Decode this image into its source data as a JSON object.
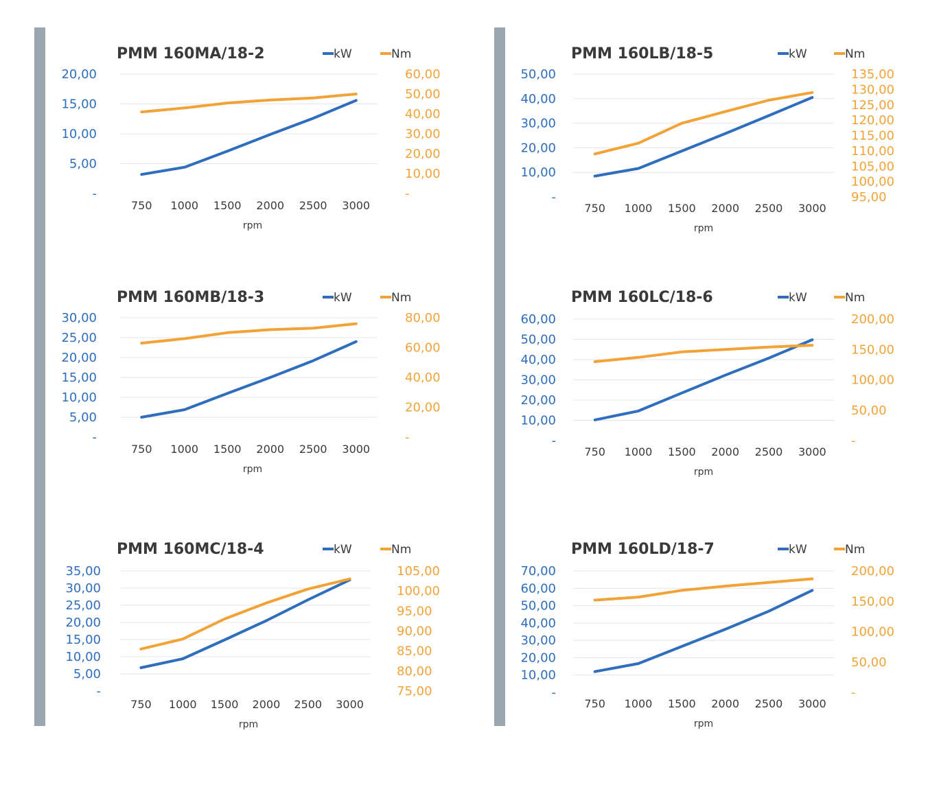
{
  "colors": {
    "kw": "#2e6ebd",
    "nm": "#f2a338",
    "sidebar": "#9aa7b1"
  },
  "chart_data": [
    {
      "type": "line",
      "title": "PMM 160MA/18-2",
      "categories": [
        "750",
        "1000",
        "1500",
        "2000",
        "2500",
        "3000"
      ],
      "xlabel": "rpm",
      "series": [
        {
          "name": "kW",
          "axis": "left",
          "values": [
            3.2,
            4.4,
            7.1,
            9.9,
            12.6,
            15.6
          ]
        },
        {
          "name": "Nm",
          "axis": "right",
          "values": [
            41,
            43,
            45.5,
            47,
            48,
            50
          ]
        }
      ],
      "left_axis": {
        "range": [
          0,
          20
        ],
        "ticks": [
          "-",
          "5,00",
          "10,00",
          "15,00",
          "20,00"
        ]
      },
      "right_axis": {
        "range": [
          0,
          60
        ],
        "ticks": [
          "-",
          "10,00",
          "20,00",
          "30,00",
          "40,00",
          "50,00",
          "60,00"
        ]
      }
    },
    {
      "type": "line",
      "title": "PMM 160MB/18-3",
      "categories": [
        "750",
        "1000",
        "1500",
        "2000",
        "2500",
        "3000"
      ],
      "xlabel": "rpm",
      "series": [
        {
          "name": "kW",
          "axis": "left",
          "values": [
            5,
            6.9,
            11,
            15,
            19.2,
            24
          ]
        },
        {
          "name": "Nm",
          "axis": "right",
          "values": [
            63,
            66,
            70,
            72,
            73,
            76
          ]
        }
      ],
      "left_axis": {
        "range": [
          0,
          30
        ],
        "ticks": [
          "-",
          "5,00",
          "10,00",
          "15,00",
          "20,00",
          "25,00",
          "30,00"
        ]
      },
      "right_axis": {
        "range": [
          0,
          80
        ],
        "ticks": [
          "-",
          "20,00",
          "40,00",
          "60,00",
          "80,00"
        ]
      }
    },
    {
      "type": "line",
      "title": "PMM 160MC/18-4",
      "categories": [
        "750",
        "1000",
        "1500",
        "2000",
        "2500",
        "3000"
      ],
      "xlabel": "rpm",
      "series": [
        {
          "name": "kW",
          "axis": "left",
          "values": [
            6.8,
            9.4,
            14.9,
            20.5,
            26.6,
            32.4
          ]
        },
        {
          "name": "Nm",
          "axis": "right",
          "values": [
            85.5,
            88,
            93,
            97,
            100.5,
            103
          ]
        }
      ],
      "left_axis": {
        "range": [
          0,
          35
        ],
        "ticks": [
          "-",
          "5,00",
          "10,00",
          "15,00",
          "20,00",
          "25,00",
          "30,00",
          "35,00"
        ]
      },
      "right_axis": {
        "range": [
          75,
          105
        ],
        "ticks": [
          "75,00",
          "80,00",
          "85,00",
          "90,00",
          "95,00",
          "100,00",
          "105,00"
        ]
      }
    },
    {
      "type": "line",
      "title": "PMM 160LB/18-5",
      "categories": [
        "750",
        "1000",
        "1500",
        "2000",
        "2500",
        "3000"
      ],
      "xlabel": "rpm",
      "series": [
        {
          "name": "kW",
          "axis": "left",
          "values": [
            8.5,
            11.6,
            18.7,
            25.8,
            33.1,
            40.5
          ]
        },
        {
          "name": "Nm",
          "axis": "right",
          "values": [
            109,
            112.5,
            119,
            122.8,
            126.5,
            129
          ]
        }
      ],
      "left_axis": {
        "range": [
          0,
          50
        ],
        "ticks": [
          "-",
          "10,00",
          "20,00",
          "30,00",
          "40,00",
          "50,00"
        ]
      },
      "right_axis": {
        "range": [
          95,
          135
        ],
        "ticks": [
          "95,00",
          "100,00",
          "105,00",
          "110,00",
          "115,00",
          "120,00",
          "125,00",
          "130,00",
          "135,00"
        ]
      }
    },
    {
      "type": "line",
      "title": "PMM 160LC/18-6",
      "categories": [
        "750",
        "1000",
        "1500",
        "2000",
        "2500",
        "3000"
      ],
      "xlabel": "rpm",
      "series": [
        {
          "name": "kW",
          "axis": "left",
          "values": [
            10.2,
            14.6,
            23.5,
            32.3,
            40.7,
            49.8
          ]
        },
        {
          "name": "Nm",
          "axis": "right",
          "values": [
            130,
            137,
            146,
            150,
            154,
            157
          ]
        }
      ],
      "left_axis": {
        "range": [
          0,
          60
        ],
        "ticks": [
          "-",
          "10,00",
          "20,00",
          "30,00",
          "40,00",
          "50,00",
          "60,00"
        ]
      },
      "right_axis": {
        "range": [
          0,
          200
        ],
        "ticks": [
          "-",
          "50,00",
          "100,00",
          "150,00",
          "200,00"
        ]
      }
    },
    {
      "type": "line",
      "title": "PMM 160LD/18-7",
      "categories": [
        "750",
        "1000",
        "1500",
        "2000",
        "2500",
        "3000"
      ],
      "xlabel": "rpm",
      "series": [
        {
          "name": "kW",
          "axis": "left",
          "values": [
            12,
            16.6,
            26.5,
            36.4,
            46.8,
            58.8
          ]
        },
        {
          "name": "Nm",
          "axis": "right",
          "values": [
            152,
            157,
            168,
            175,
            181,
            187
          ]
        }
      ],
      "left_axis": {
        "range": [
          0,
          70
        ],
        "ticks": [
          "-",
          "10,00",
          "20,00",
          "30,00",
          "40,00",
          "50,00",
          "60,00",
          "70,00"
        ]
      },
      "right_axis": {
        "range": [
          0,
          200
        ],
        "ticks": [
          "-",
          "50,00",
          "100,00",
          "150,00",
          "200,00"
        ]
      }
    }
  ]
}
